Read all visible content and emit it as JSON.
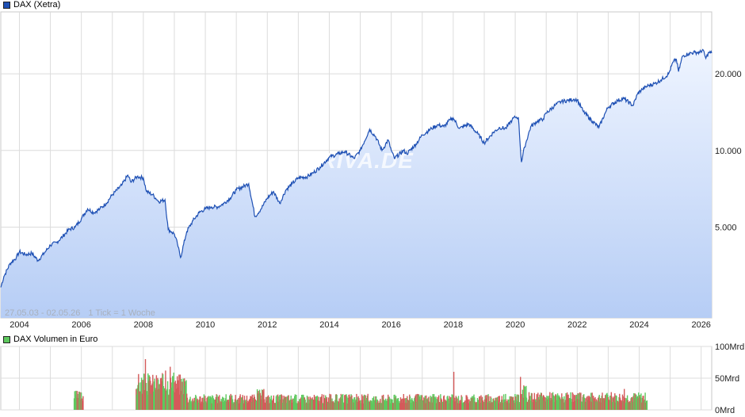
{
  "chart_data": [
    {
      "type": "area",
      "legend": "DAX (Xetra)",
      "date_range": "27.05.03 - 02.05.26",
      "tick_note": "1 Tick = 1 Woche",
      "watermark": "ARIVA.DE",
      "x_ticks": [
        "2004",
        "2006",
        "2008",
        "2010",
        "2012",
        "2014",
        "2016",
        "2018",
        "2020",
        "2022",
        "2024",
        "2026"
      ],
      "y_ticks": [
        "5.000",
        "10.000",
        "20.000"
      ],
      "y_tick_values": [
        5000,
        10000,
        20000
      ],
      "y_scale": "log",
      "ylim": [
        2200,
        35000
      ],
      "xlim": [
        2003.4,
        2026.34
      ],
      "grid": true,
      "color": "#1e50b4",
      "series": [
        {
          "name": "DAX (Xetra)",
          "points": [
            [
              2003.4,
              2900
            ],
            [
              2003.5,
              3200
            ],
            [
              2003.7,
              3600
            ],
            [
              2003.9,
              3800
            ],
            [
              2004.0,
              4000
            ],
            [
              2004.2,
              3900
            ],
            [
              2004.4,
              3950
            ],
            [
              2004.6,
              3700
            ],
            [
              2004.8,
              3950
            ],
            [
              2005.0,
              4250
            ],
            [
              2005.2,
              4350
            ],
            [
              2005.4,
              4600
            ],
            [
              2005.6,
              4900
            ],
            [
              2005.8,
              5000
            ],
            [
              2006.0,
              5400
            ],
            [
              2006.2,
              5900
            ],
            [
              2006.4,
              5700
            ],
            [
              2006.6,
              5900
            ],
            [
              2006.8,
              6200
            ],
            [
              2007.0,
              6700
            ],
            [
              2007.3,
              7300
            ],
            [
              2007.5,
              8000
            ],
            [
              2007.6,
              7500
            ],
            [
              2007.8,
              7900
            ],
            [
              2008.0,
              7800
            ],
            [
              2008.1,
              6900
            ],
            [
              2008.3,
              6700
            ],
            [
              2008.5,
              6300
            ],
            [
              2008.7,
              6400
            ],
            [
              2008.8,
              4900
            ],
            [
              2008.9,
              4800
            ],
            [
              2009.0,
              4700
            ],
            [
              2009.1,
              4300
            ],
            [
              2009.2,
              3800
            ],
            [
              2009.4,
              4800
            ],
            [
              2009.6,
              5300
            ],
            [
              2009.8,
              5700
            ],
            [
              2010.0,
              5900
            ],
            [
              2010.2,
              6000
            ],
            [
              2010.4,
              6000
            ],
            [
              2010.6,
              6200
            ],
            [
              2010.8,
              6500
            ],
            [
              2011.0,
              7000
            ],
            [
              2011.3,
              7300
            ],
            [
              2011.4,
              7400
            ],
            [
              2011.6,
              5500
            ],
            [
              2011.8,
              5900
            ],
            [
              2012.0,
              6500
            ],
            [
              2012.2,
              6900
            ],
            [
              2012.4,
              6200
            ],
            [
              2012.6,
              7000
            ],
            [
              2012.8,
              7400
            ],
            [
              2013.0,
              7800
            ],
            [
              2013.3,
              7900
            ],
            [
              2013.5,
              8200
            ],
            [
              2013.7,
              8600
            ],
            [
              2014.0,
              9400
            ],
            [
              2014.3,
              9700
            ],
            [
              2014.5,
              9900
            ],
            [
              2014.8,
              9300
            ],
            [
              2015.0,
              10000
            ],
            [
              2015.3,
              12100
            ],
            [
              2015.5,
              11300
            ],
            [
              2015.7,
              10000
            ],
            [
              2015.9,
              11000
            ],
            [
              2016.0,
              10000
            ],
            [
              2016.1,
              9300
            ],
            [
              2016.4,
              10000
            ],
            [
              2016.5,
              9700
            ],
            [
              2016.8,
              10600
            ],
            [
              2017.0,
              11500
            ],
            [
              2017.3,
              12200
            ],
            [
              2017.5,
              12600
            ],
            [
              2017.7,
              12400
            ],
            [
              2017.9,
              13200
            ],
            [
              2018.0,
              13400
            ],
            [
              2018.2,
              12200
            ],
            [
              2018.5,
              12700
            ],
            [
              2018.8,
              11600
            ],
            [
              2019.0,
              10700
            ],
            [
              2019.3,
              11800
            ],
            [
              2019.5,
              12300
            ],
            [
              2019.7,
              12200
            ],
            [
              2019.9,
              13200
            ],
            [
              2020.0,
              13500
            ],
            [
              2020.1,
              13500
            ],
            [
              2020.2,
              9000
            ],
            [
              2020.3,
              10300
            ],
            [
              2020.5,
              12400
            ],
            [
              2020.7,
              13000
            ],
            [
              2020.9,
              13300
            ],
            [
              2021.0,
              14000
            ],
            [
              2021.3,
              15100
            ],
            [
              2021.5,
              15600
            ],
            [
              2021.7,
              15700
            ],
            [
              2021.9,
              15900
            ],
            [
              2022.0,
              15800
            ],
            [
              2022.2,
              14200
            ],
            [
              2022.5,
              13000
            ],
            [
              2022.7,
              12300
            ],
            [
              2022.9,
              14000
            ],
            [
              2023.0,
              14800
            ],
            [
              2023.3,
              15700
            ],
            [
              2023.5,
              16000
            ],
            [
              2023.8,
              15000
            ],
            [
              2023.95,
              16700
            ],
            [
              2024.1,
              17400
            ],
            [
              2024.3,
              18000
            ],
            [
              2024.5,
              18300
            ],
            [
              2024.7,
              18900
            ],
            [
              2024.95,
              20000
            ],
            [
              2025.1,
              22300
            ],
            [
              2025.2,
              22800
            ],
            [
              2025.27,
              20400
            ],
            [
              2025.4,
              23500
            ],
            [
              2025.6,
              24000
            ],
            [
              2025.8,
              24300
            ],
            [
              2025.95,
              24200
            ],
            [
              2026.05,
              24900
            ],
            [
              2026.15,
              23000
            ],
            [
              2026.25,
              24300
            ],
            [
              2026.34,
              24100
            ]
          ]
        }
      ]
    },
    {
      "type": "bar",
      "legend": "DAX Volumen in Euro",
      "y_ticks": [
        "0Mrd",
        "50Mrd",
        "100Mrd"
      ],
      "y_tick_values": [
        0,
        50,
        100
      ],
      "ylim": [
        0,
        100
      ],
      "unit": "Mrd",
      "xlim": [
        2003.4,
        2026.34
      ],
      "grid": true,
      "up_color": "#5ec85e",
      "down_color": "#d45a5a",
      "blocks": [
        {
          "from": 2005.75,
          "to": 2006.05,
          "level": 22
        },
        {
          "from": 2007.75,
          "to": 2009.4,
          "level": 42
        },
        {
          "from": 2009.4,
          "to": 2011.6,
          "level": 18
        },
        {
          "from": 2011.6,
          "to": 2011.9,
          "level": 24
        },
        {
          "from": 2011.9,
          "to": 2020.2,
          "level": 18
        },
        {
          "from": 2020.2,
          "to": 2020.35,
          "level": 28
        },
        {
          "from": 2020.35,
          "to": 2024.25,
          "level": 20
        }
      ],
      "spikes": [
        [
          2008.05,
          80
        ],
        [
          2008.7,
          62
        ],
        [
          2008.85,
          68
        ],
        [
          2018.0,
          60
        ],
        [
          2020.15,
          52
        ],
        [
          2023.5,
          33
        ]
      ]
    }
  ]
}
